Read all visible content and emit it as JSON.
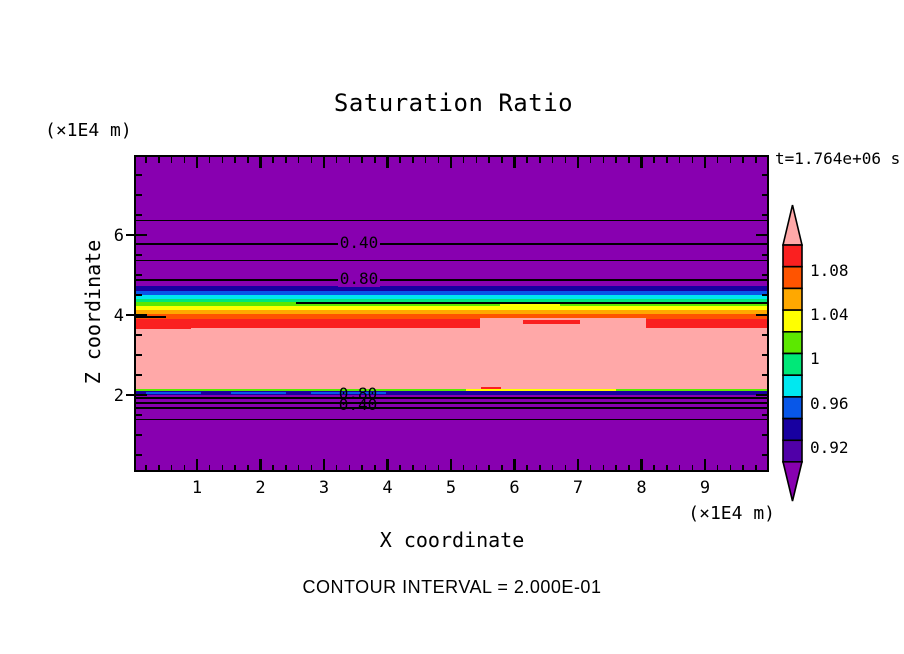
{
  "title": "Saturation Ratio",
  "time_label": "t=1.764e+06 s",
  "footer": "CONTOUR INTERVAL = 2.000E-01",
  "x_axis": {
    "label": "X coordinate",
    "units": "(×1E4 m)",
    "tick_labels": [
      "1",
      "2",
      "3",
      "4",
      "5",
      "6",
      "7",
      "8",
      "9"
    ]
  },
  "y_axis": {
    "label": "Z coordinate",
    "units": "(×1E4 m)",
    "tick_labels": [
      "6",
      "4",
      "2"
    ]
  },
  "contour_labels": {
    "upper_040": "0.40",
    "upper_080": "0.80",
    "lower_080": "0.80",
    "lower_040": "0.40"
  },
  "colorbar": {
    "tick_labels": [
      "1.08",
      "1.04",
      "1",
      "0.96",
      "0.92"
    ],
    "segment_colors": [
      "red",
      "orange_red",
      "orange",
      "yellow",
      "green",
      "spring_green",
      "cyan",
      "blue",
      "navy",
      "violet"
    ],
    "top_arrow_color": "pink",
    "bottom_arrow_color": "purple"
  },
  "palette": {
    "purple": "#8800B0",
    "violet": "#5000A8",
    "navy": "#1800A0",
    "blue": "#0857E8",
    "cyan": "#00E8F0",
    "spring_green": "#00E878",
    "green": "#5CE800",
    "yellow": "#FFFF00",
    "orange": "#FFA800",
    "orange_red": "#FF5400",
    "red": "#FA2020",
    "pink": "#FFA8A8",
    "line": "#000000"
  },
  "chart_data": {
    "type": "heatmap",
    "title": "Saturation Ratio",
    "xlabel": "X coordinate (×1E4 m)",
    "ylabel": "Z coordinate (×1E4 m)",
    "xlim": [
      0,
      10
    ],
    "ylim": [
      0,
      8
    ],
    "time_annotation": "t=1.764e+06 s",
    "contour_interval": 0.2,
    "labeled_contour_values": [
      0.4,
      0.8
    ],
    "colorbar_tick_values": [
      1.08,
      1.04,
      1.0,
      0.96,
      0.92
    ],
    "colorbar_step": 0.02,
    "colorbar_color_range": [
      0.9,
      1.1
    ],
    "field_description": "Saturation ratio is horizontally layered (nearly independent of x); purple background < 0.9, rainbow transition bands near z=4.5 and z=2, pink core > 1.10 between z=2.1 and z=3.7",
    "z_profile": [
      {
        "z": 7.9,
        "saturation": 0.1
      },
      {
        "z": 6.4,
        "saturation": 0.2
      },
      {
        "z": 5.8,
        "saturation": 0.4
      },
      {
        "z": 5.4,
        "saturation": 0.6
      },
      {
        "z": 4.9,
        "saturation": 0.8
      },
      {
        "z": 4.6,
        "saturation": 0.92
      },
      {
        "z": 4.3,
        "saturation": 1.0
      },
      {
        "z": 4.0,
        "saturation": 1.06
      },
      {
        "z": 3.7,
        "saturation": 1.1
      },
      {
        "z": 2.9,
        "saturation": 1.12
      },
      {
        "z": 2.1,
        "saturation": 1.1
      },
      {
        "z": 2.0,
        "saturation": 0.96
      },
      {
        "z": 1.97,
        "saturation": 0.8
      },
      {
        "z": 1.85,
        "saturation": 0.6
      },
      {
        "z": 1.72,
        "saturation": 0.4
      },
      {
        "z": 1.4,
        "saturation": 0.2
      },
      {
        "z": 0.5,
        "saturation": 0.1
      }
    ]
  }
}
